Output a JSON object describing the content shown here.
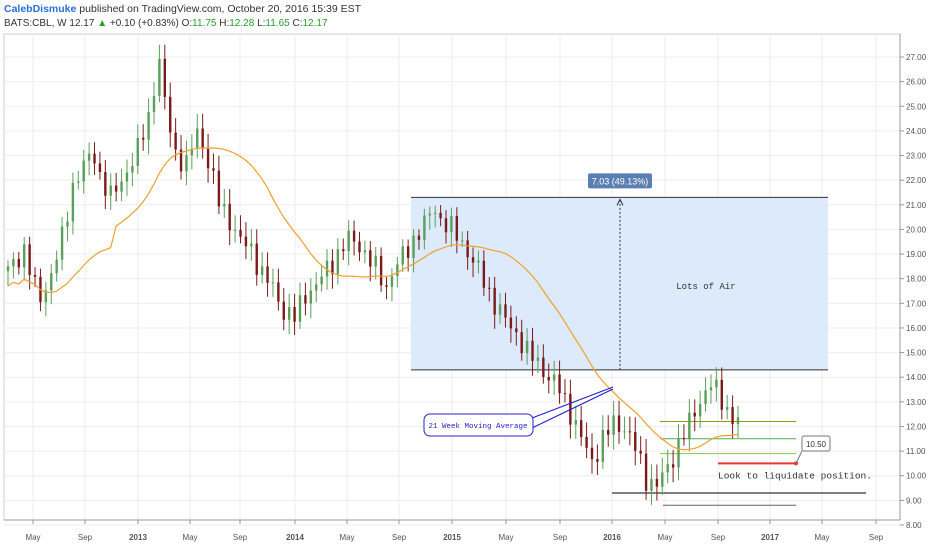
{
  "header": {
    "author": "CalebDismuke",
    "published": "published on TradingView.com, October 20, 2016 15:39 EST",
    "symbol": "BATS:CBL, W",
    "last": "12.17",
    "change": "+0.10 (+0.83%)",
    "o_label": "O:",
    "o_val": "11.75",
    "h_label": "H:",
    "h_val": "12.28",
    "l_label": "L:",
    "l_val": "11.65",
    "c_label": "C:",
    "c_val": "12.17"
  },
  "chart_data": {
    "type": "candlestick",
    "y_ticks": [
      "27.00",
      "26.00",
      "25.00",
      "24.00",
      "23.00",
      "22.00",
      "21.00",
      "20.00",
      "19.00",
      "18.00",
      "17.00",
      "16.00",
      "15.00",
      "14.00",
      "13.00",
      "12.00",
      "11.00",
      "10.00",
      "9.00",
      "8.00"
    ],
    "ylim": [
      7.6,
      27.6
    ],
    "x_ticks": [
      "May",
      "Sep",
      "2013",
      "May",
      "Sep",
      "2014",
      "May",
      "Sep",
      "2015",
      "May",
      "Sep",
      "2016",
      "May",
      "Sep",
      "2017",
      "May",
      "Sep"
    ],
    "price_path": [
      [
        0,
        18.3
      ],
      [
        3,
        19.2
      ],
      [
        5,
        17.6
      ],
      [
        6,
        17.2
      ],
      [
        8,
        18.2
      ],
      [
        10,
        19.6
      ],
      [
        12,
        21.8
      ],
      [
        14,
        22.6
      ],
      [
        16,
        23.0
      ],
      [
        17,
        22.2
      ],
      [
        19,
        21.3
      ],
      [
        20,
        21.6
      ],
      [
        22,
        22.4
      ],
      [
        24,
        23.2
      ],
      [
        26,
        24.6
      ],
      [
        27,
        25.8
      ],
      [
        28,
        26.8
      ],
      [
        29,
        25.1
      ],
      [
        31,
        23.1
      ],
      [
        33,
        22.6
      ],
      [
        35,
        24.0
      ],
      [
        37,
        22.8
      ],
      [
        39,
        21.1
      ],
      [
        41,
        20.4
      ],
      [
        43,
        19.5
      ],
      [
        45,
        19.2
      ],
      [
        47,
        18.2
      ],
      [
        49,
        17.6
      ],
      [
        51,
        16.7
      ],
      [
        53,
        16.4
      ],
      [
        55,
        17.4
      ],
      [
        57,
        17.7
      ],
      [
        59,
        18.4
      ],
      [
        61,
        19.0
      ],
      [
        63,
        19.6
      ],
      [
        65,
        19.4
      ],
      [
        66,
        19.0
      ],
      [
        68,
        18.4
      ],
      [
        70,
        17.7
      ],
      [
        71,
        18.2
      ],
      [
        73,
        18.9
      ],
      [
        75,
        19.6
      ],
      [
        77,
        20.2
      ],
      [
        79,
        20.9
      ],
      [
        80,
        20.4
      ],
      [
        82,
        20.0
      ],
      [
        84,
        19.5
      ],
      [
        86,
        18.7
      ],
      [
        88,
        17.9
      ],
      [
        90,
        17.0
      ],
      [
        92,
        16.3
      ],
      [
        94,
        15.8
      ],
      [
        96,
        15.0
      ],
      [
        98,
        14.6
      ],
      [
        100,
        14.0
      ],
      [
        102,
        13.5
      ],
      [
        104,
        12.6
      ],
      [
        106,
        11.5
      ],
      [
        108,
        10.6
      ],
      [
        110,
        11.5
      ],
      [
        112,
        12.1
      ],
      [
        114,
        12.0
      ],
      [
        116,
        11.1
      ],
      [
        118,
        9.9
      ],
      [
        120,
        9.6
      ],
      [
        122,
        10.3
      ],
      [
        124,
        11.3
      ],
      [
        126,
        12.1
      ],
      [
        128,
        13.1
      ],
      [
        130,
        13.7
      ],
      [
        132,
        13.1
      ],
      [
        134,
        12.3
      ],
      [
        135,
        12.17
      ]
    ],
    "ma_label": "21 Week Moving Average",
    "range_label": "7.03 (49.13%)",
    "range_top": 21.3,
    "range_bottom": 14.3,
    "air_label": "Lots of Air",
    "price_tag": "10.50",
    "liquidate_label": "Look to liquidate position.",
    "hlines": [
      {
        "y": 12.2,
        "color": "#9c9c00"
      },
      {
        "y": 11.5,
        "color": "#4caf50"
      },
      {
        "y": 10.9,
        "color": "#8bc34a"
      },
      {
        "y": 10.5,
        "color": "#e53935"
      },
      {
        "y": 9.3,
        "color": "#000000"
      },
      {
        "y": 8.8,
        "color": "#666666"
      }
    ],
    "colors": {
      "up": "#5a9f5a",
      "down": "#7a1a1a",
      "ma": "#f0a030",
      "box": "#dceafb",
      "tag": "#5b7fb0"
    }
  }
}
